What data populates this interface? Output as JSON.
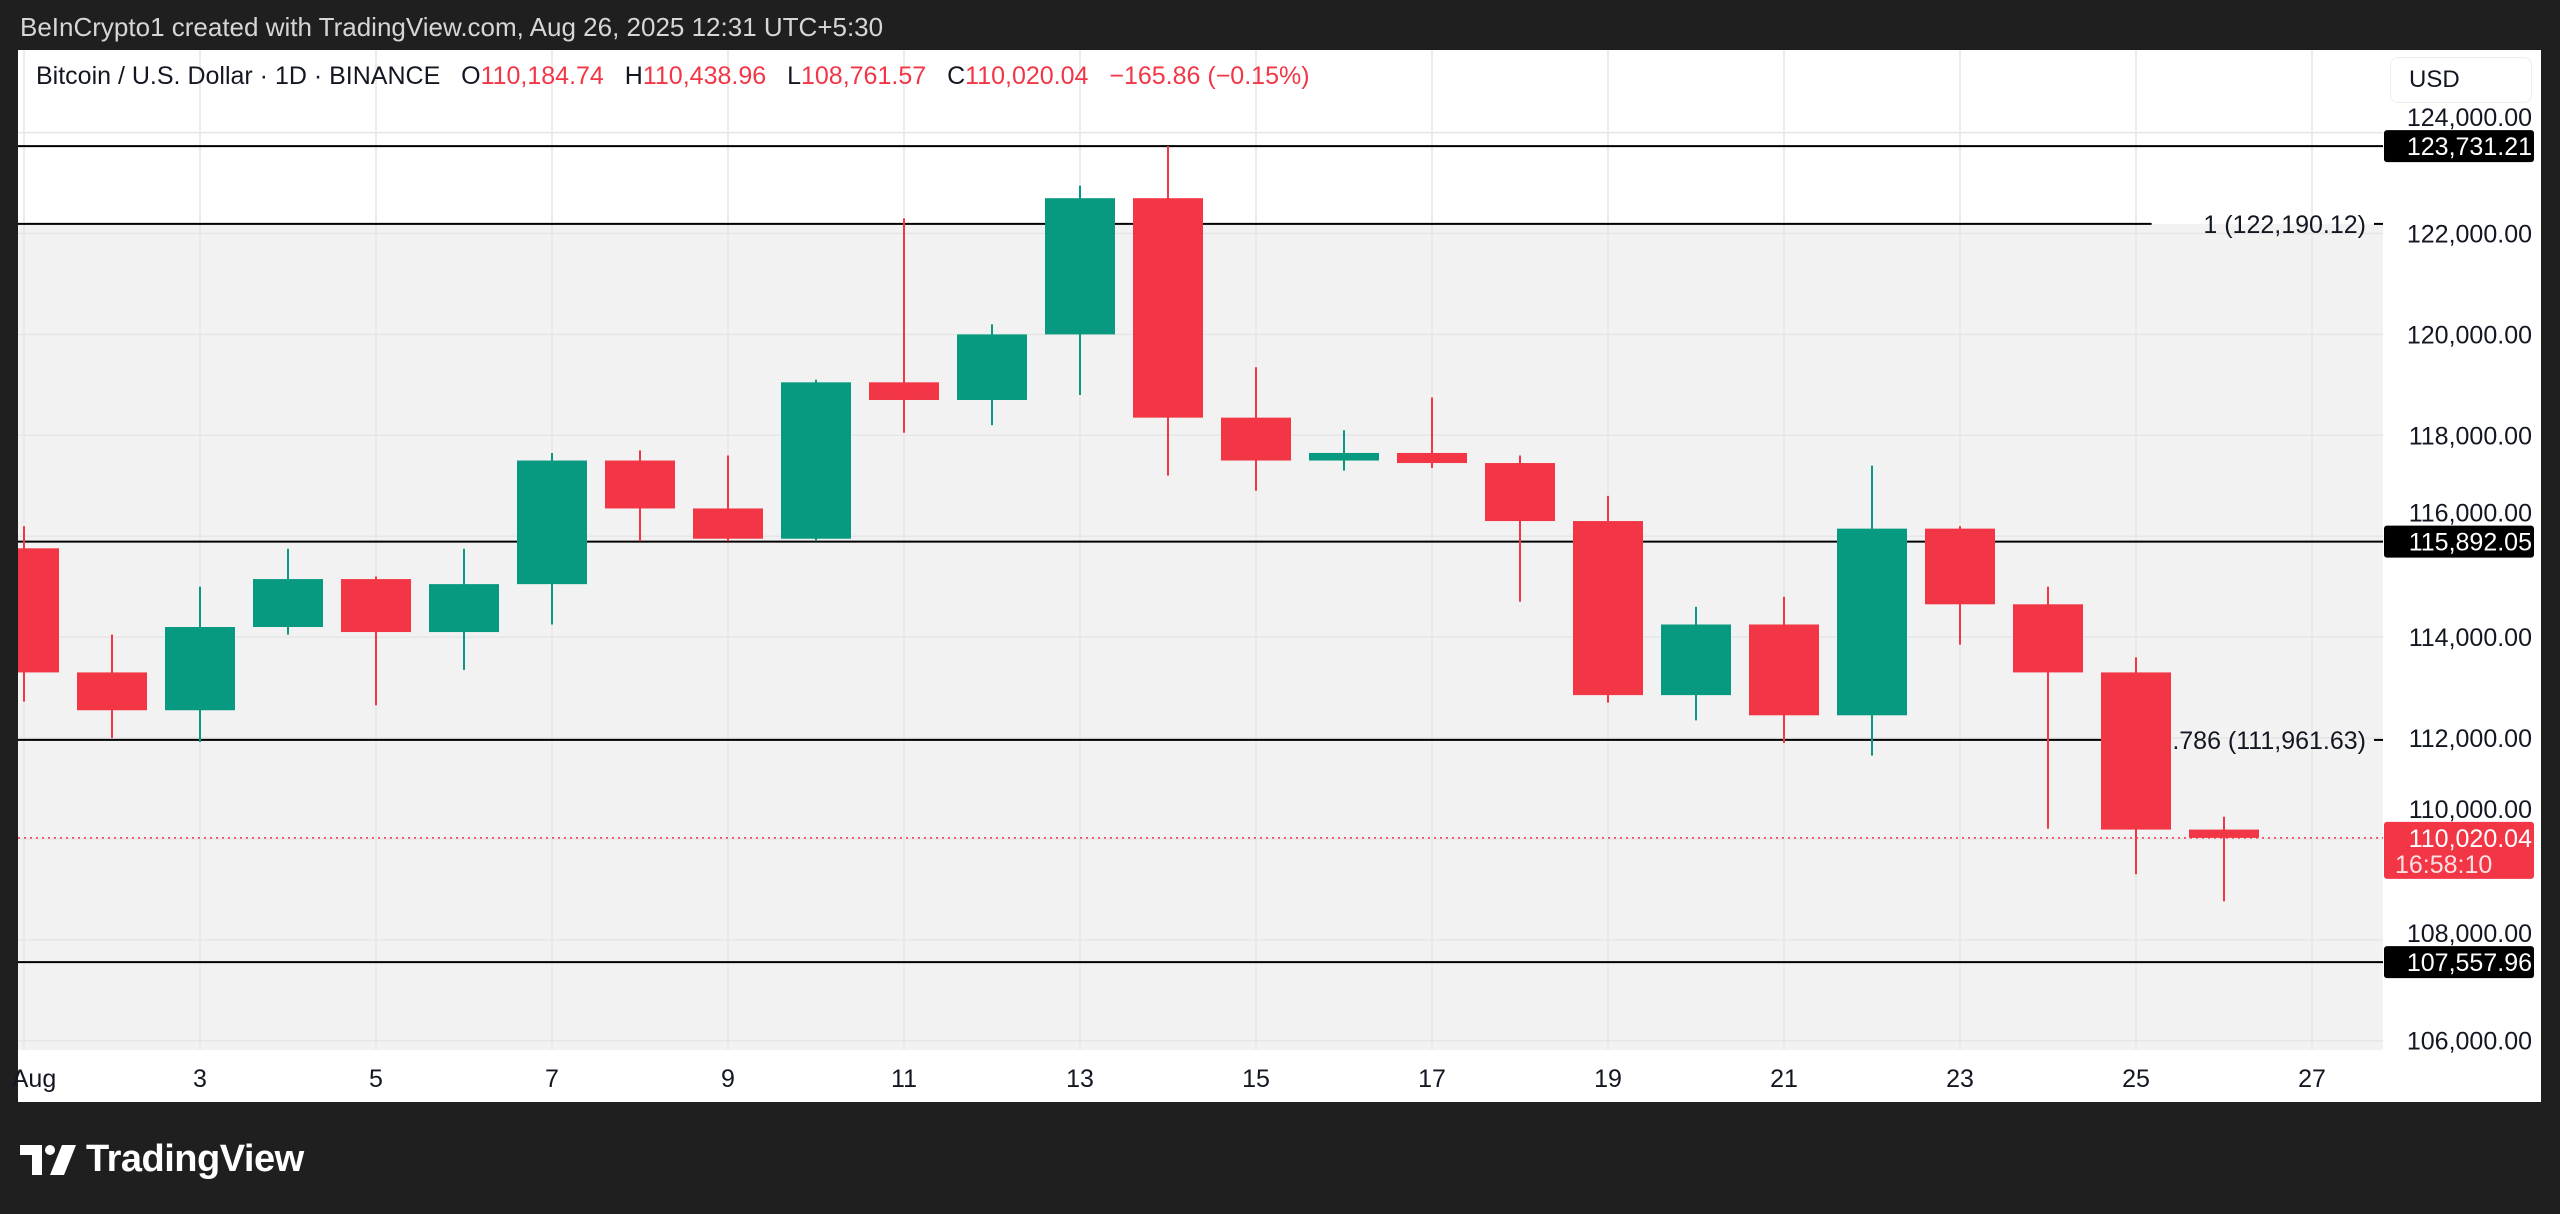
{
  "credit": "BeInCrypto1 created with TradingView.com, Aug 26, 2025 12:31 UTC+5:30",
  "legend": {
    "symbol": "Bitcoin / U.S. Dollar · 1D · BINANCE",
    "o_label": "O",
    "o": "110,184.74",
    "h_label": "H",
    "h": "110,438.96",
    "l_label": "L",
    "l": "108,761.57",
    "c_label": "C",
    "c": "110,020.04",
    "change": "−165.86 (−0.15%)"
  },
  "currency_button": "USD",
  "logo_text": "TradingView",
  "chart_data": {
    "type": "candlestick",
    "colors": {
      "up": "#089981",
      "down": "#F23645",
      "level": "#000000",
      "fib_zone": "#f2f2f2"
    },
    "ylim": [
      105600,
      124900
    ],
    "y_ticks": [
      106000,
      108000,
      110000,
      112000,
      114000,
      116000,
      118000,
      120000,
      122000,
      124000
    ],
    "y_tick_labels": [
      "106,000.00",
      "108,000.00",
      "110,000.00",
      "112,000.00",
      "114,000.00",
      "116,000.00",
      "118,000.00",
      "120,000.00",
      "122,000.00",
      "124,000.00"
    ],
    "x_ticks": [
      1,
      3,
      5,
      7,
      9,
      11,
      13,
      15,
      17,
      19,
      21,
      23,
      25,
      27
    ],
    "x_tick_labels": [
      "Aug",
      "3",
      "5",
      "7",
      "9",
      "11",
      "13",
      "15",
      "17",
      "19",
      "21",
      "23",
      "25",
      "27"
    ],
    "grid": true,
    "candles": [
      {
        "day": 1,
        "o": 115760,
        "h": 116200,
        "l": 112720,
        "c": 113300
      },
      {
        "day": 2,
        "o": 113300,
        "h": 114050,
        "l": 112000,
        "c": 112550
      },
      {
        "day": 3,
        "o": 112550,
        "h": 115000,
        "l": 111920,
        "c": 114200
      },
      {
        "day": 4,
        "o": 114200,
        "h": 115750,
        "l": 114050,
        "c": 115150
      },
      {
        "day": 5,
        "o": 115150,
        "h": 115200,
        "l": 112650,
        "c": 114100
      },
      {
        "day": 6,
        "o": 114100,
        "h": 115750,
        "l": 113350,
        "c": 115050
      },
      {
        "day": 7,
        "o": 115050,
        "h": 117650,
        "l": 114250,
        "c": 117500
      },
      {
        "day": 8,
        "o": 117500,
        "h": 117700,
        "l": 115900,
        "c": 116550
      },
      {
        "day": 9,
        "o": 116550,
        "h": 117600,
        "l": 115900,
        "c": 115950
      },
      {
        "day": 10,
        "o": 115950,
        "h": 119100,
        "l": 115900,
        "c": 119050
      },
      {
        "day": 11,
        "o": 119050,
        "h": 122300,
        "l": 118050,
        "c": 118700
      },
      {
        "day": 12,
        "o": 118700,
        "h": 120200,
        "l": 118200,
        "c": 120000
      },
      {
        "day": 13,
        "o": 120000,
        "h": 122950,
        "l": 118800,
        "c": 122700
      },
      {
        "day": 14,
        "o": 122700,
        "h": 123731.21,
        "l": 117200,
        "c": 118350
      },
      {
        "day": 15,
        "o": 118350,
        "h": 119350,
        "l": 116900,
        "c": 117500
      },
      {
        "day": 16,
        "o": 117500,
        "h": 118100,
        "l": 117300,
        "c": 117650
      },
      {
        "day": 17,
        "o": 117650,
        "h": 118750,
        "l": 117350,
        "c": 117450
      },
      {
        "day": 18,
        "o": 117450,
        "h": 117600,
        "l": 114700,
        "c": 116300
      },
      {
        "day": 19,
        "o": 116300,
        "h": 116800,
        "l": 112700,
        "c": 112850
      },
      {
        "day": 20,
        "o": 112850,
        "h": 114600,
        "l": 112350,
        "c": 114250
      },
      {
        "day": 21,
        "o": 114250,
        "h": 114800,
        "l": 111900,
        "c": 112450
      },
      {
        "day": 22,
        "o": 112450,
        "h": 117400,
        "l": 111650,
        "c": 116150
      },
      {
        "day": 23,
        "o": 116150,
        "h": 116200,
        "l": 113850,
        "c": 114650
      },
      {
        "day": 24,
        "o": 114650,
        "h": 115000,
        "l": 110200,
        "c": 113300
      },
      {
        "day": 25,
        "o": 113300,
        "h": 113600,
        "l": 109300,
        "c": 110184.74
      },
      {
        "day": 26,
        "o": 110184.74,
        "h": 110438.96,
        "l": 108761.57,
        "c": 110020.04
      }
    ],
    "levels": [
      {
        "price": 123731.21,
        "label": "123,731.21",
        "tag": "axis"
      },
      {
        "price": 122190.12,
        "label": "1 (122,190.12)",
        "tag": "fib"
      },
      {
        "price": 115892.05,
        "label": "115,892.05",
        "tag": "axis"
      },
      {
        "price": 111961.63,
        "label": ".786 (111,961.63)",
        "tag": "fib"
      },
      {
        "price": 107557.96,
        "label": "107,557.96",
        "tag": "axis"
      }
    ],
    "fib_zone": [
      111961.63,
      122190.12
    ],
    "last_price": {
      "value": 110020.04,
      "label": "110,020.04",
      "countdown": "16:58:10"
    }
  }
}
